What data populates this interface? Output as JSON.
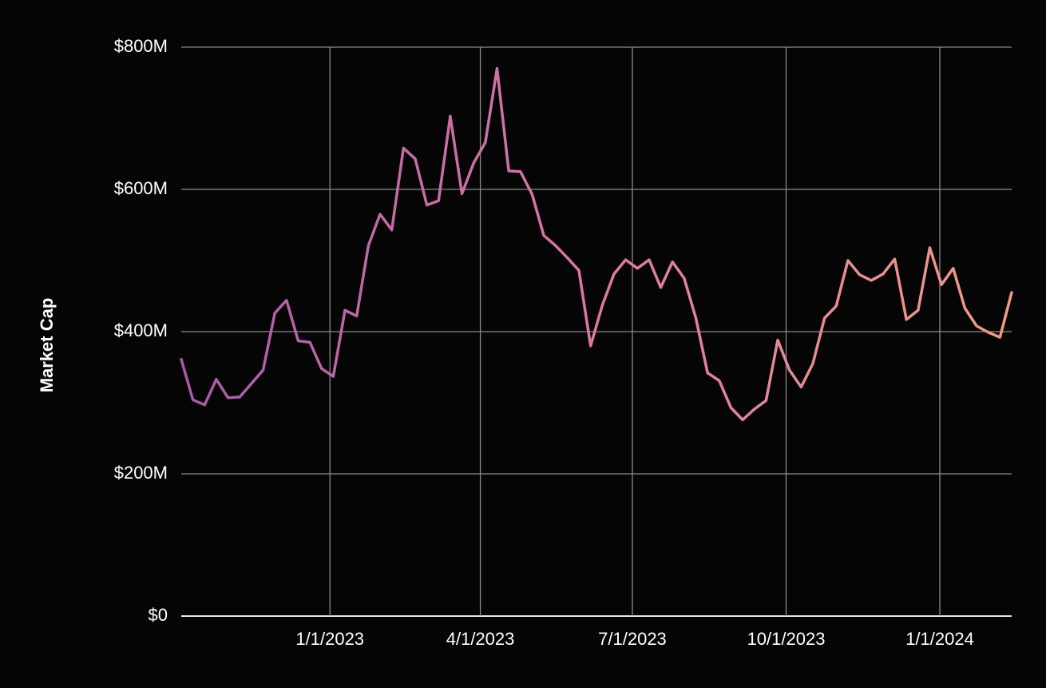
{
  "chart_data": {
    "type": "line",
    "ylabel": "Market Cap",
    "x": [
      "2022-10-04",
      "2022-10-11",
      "2022-10-18",
      "2022-10-25",
      "2022-11-01",
      "2022-11-08",
      "2022-11-15",
      "2022-11-22",
      "2022-11-29",
      "2022-12-06",
      "2022-12-13",
      "2022-12-20",
      "2022-12-27",
      "2023-01-03",
      "2023-01-10",
      "2023-01-17",
      "2023-01-24",
      "2023-01-31",
      "2023-02-07",
      "2023-02-14",
      "2023-02-21",
      "2023-02-28",
      "2023-03-07",
      "2023-03-14",
      "2023-03-21",
      "2023-03-28",
      "2023-04-04",
      "2023-04-11",
      "2023-04-18",
      "2023-04-25",
      "2023-05-02",
      "2023-05-09",
      "2023-05-16",
      "2023-05-23",
      "2023-05-30",
      "2023-06-06",
      "2023-06-13",
      "2023-06-20",
      "2023-06-27",
      "2023-07-04",
      "2023-07-11",
      "2023-07-18",
      "2023-07-25",
      "2023-08-01",
      "2023-08-08",
      "2023-08-15",
      "2023-08-22",
      "2023-08-29",
      "2023-09-05",
      "2023-09-12",
      "2023-09-19",
      "2023-09-26",
      "2023-10-03",
      "2023-10-10",
      "2023-10-17",
      "2023-10-24",
      "2023-10-31",
      "2023-11-07",
      "2023-11-14",
      "2023-11-21",
      "2023-11-28",
      "2023-12-05",
      "2023-12-12",
      "2023-12-19",
      "2023-12-26",
      "2024-01-02",
      "2024-01-09",
      "2024-01-16",
      "2024-01-23",
      "2024-01-30",
      "2024-02-06",
      "2024-02-13"
    ],
    "series": [
      {
        "name": "Market Cap",
        "colors": [
          "#a85aa6",
          "#dc78a6",
          "#ee9c84"
        ],
        "values": [
          361000000,
          304000000,
          297000000,
          333000000,
          307000000,
          308000000,
          327000000,
          346000000,
          426000000,
          444000000,
          387000000,
          385000000,
          348000000,
          337000000,
          430000000,
          422000000,
          521000000,
          565000000,
          543000000,
          658000000,
          643000000,
          578000000,
          584000000,
          703000000,
          594000000,
          637000000,
          666000000,
          770000000,
          626000000,
          625000000,
          593000000,
          535000000,
          521000000,
          504000000,
          486000000,
          380000000,
          437000000,
          481000000,
          501000000,
          489000000,
          501000000,
          462000000,
          498000000,
          475000000,
          419000000,
          342000000,
          331000000,
          293000000,
          276000000,
          291000000,
          303000000,
          388000000,
          346000000,
          322000000,
          355000000,
          419000000,
          436000000,
          500000000,
          480000000,
          472000000,
          481000000,
          502000000,
          417000000,
          430000000,
          518000000,
          466000000,
          489000000,
          433000000,
          408000000,
          399000000,
          392000000,
          455000000
        ]
      }
    ],
    "xlim": [
      "2022-10-04",
      "2024-02-13"
    ],
    "xticks": [
      {
        "value": "2023-01-01",
        "label": "1/1/2023"
      },
      {
        "value": "2023-04-01",
        "label": "4/1/2023"
      },
      {
        "value": "2023-07-01",
        "label": "7/1/2023"
      },
      {
        "value": "2023-10-01",
        "label": "10/1/2023"
      },
      {
        "value": "2024-01-01",
        "label": "1/1/2024"
      }
    ],
    "ylim": [
      0,
      800000000
    ],
    "yticks": [
      {
        "value": 0,
        "label": "$0"
      },
      {
        "value": 200000000,
        "label": "$200M"
      },
      {
        "value": 400000000,
        "label": "$400M"
      },
      {
        "value": 600000000,
        "label": "$600M"
      },
      {
        "value": 800000000,
        "label": "$800M"
      }
    ],
    "grid": true
  }
}
